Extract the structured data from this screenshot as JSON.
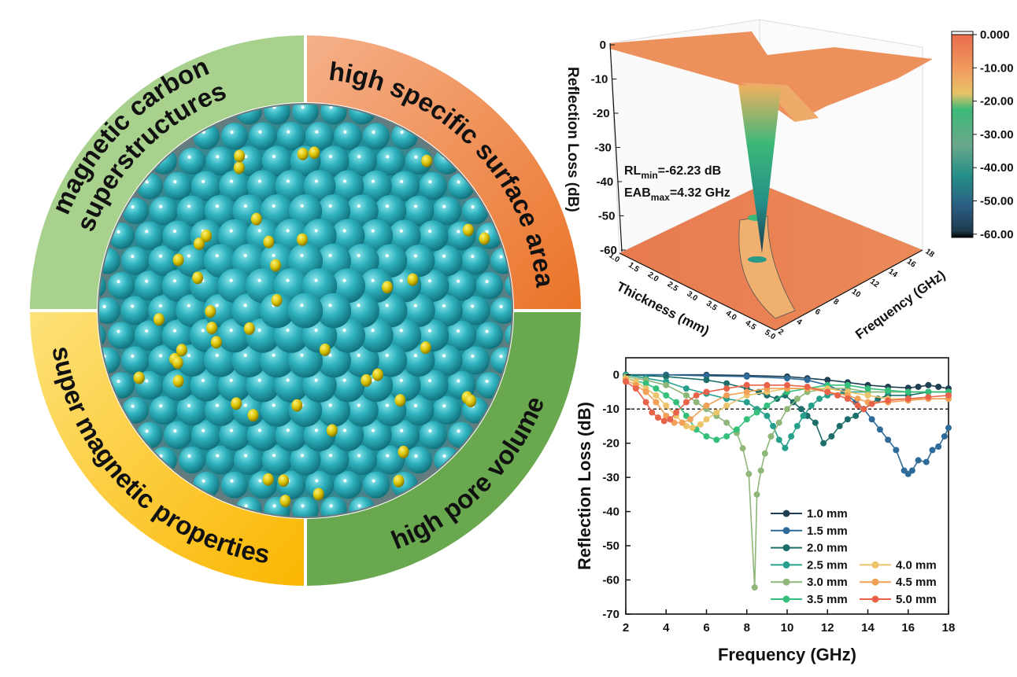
{
  "diagram": {
    "quadrants": [
      {
        "id": "tl",
        "lines": [
          "magnetic carbon",
          "superstructures"
        ],
        "color": "#a9d18e"
      },
      {
        "id": "tr",
        "lines": [
          "high specific surface area"
        ],
        "color": "#ee8a45"
      },
      {
        "id": "br",
        "lines": [
          "high pore volume"
        ],
        "color": "#6aa84f"
      },
      {
        "id": "bl",
        "lines": [
          "super magnetic properties"
        ],
        "color": "#fdc530"
      }
    ],
    "sphere_color": "#2fb3bf",
    "particle_color": "#d7c000"
  },
  "plot3d": {
    "z_label": "Reflection Loss (dB)",
    "x_label": "Thickness (mm)",
    "y_label": "Frequency (GHz)",
    "z_ticks": [
      "0",
      "-10",
      "-20",
      "-30",
      "-40",
      "-50",
      "-60"
    ],
    "thickness_ticks": [
      "1.0",
      "1.5",
      "2.0",
      "2.5",
      "3.0",
      "3.5",
      "4.0",
      "4.5",
      "5.0"
    ],
    "frequency_ticks": [
      "2",
      "4",
      "6",
      "8",
      "10",
      "12",
      "14",
      "16",
      "18"
    ],
    "colorbar_ticks": [
      "0.000",
      "-10.00",
      "-20.00",
      "-30.00",
      "-40.00",
      "-50.00",
      "-60.00"
    ],
    "annotation": {
      "rl_main": "RL",
      "rl_sub": "min",
      "rl_value": "=-62.23 dB",
      "eab_main": "EAB",
      "eab_sub": "max",
      "eab_value": "=4.32 GHz"
    }
  },
  "chart_data": {
    "type": "line",
    "title": "",
    "xlabel": "Frequency (GHz)",
    "ylabel": "Reflection Loss (dB)",
    "xlim": [
      2,
      18
    ],
    "ylim": [
      -70,
      5
    ],
    "x_ticks": [
      "2",
      "4",
      "6",
      "8",
      "10",
      "12",
      "14",
      "16",
      "18"
    ],
    "y_ticks": [
      "0",
      "-10",
      "-20",
      "-30",
      "-40",
      "-50",
      "-60",
      "-70"
    ],
    "reference_line": -10,
    "legend_position": "bottom-right",
    "series": [
      {
        "name": "1.0 mm",
        "color": "#213f52",
        "x": [
          2,
          4,
          6,
          8,
          10,
          11,
          12,
          13,
          14,
          15,
          16,
          16.5,
          17,
          17.5,
          18
        ],
        "y": [
          0,
          0,
          0,
          -0.2,
          -0.5,
          -1,
          -1.5,
          -2.2,
          -3,
          -3.5,
          -3.8,
          -3.5,
          -3,
          -3.5,
          -4
        ]
      },
      {
        "name": "1.5 mm",
        "color": "#2f6b98",
        "x": [
          2,
          4,
          6,
          8,
          10,
          11,
          12,
          12.8,
          13.4,
          13.8,
          14.2,
          14.6,
          15,
          15.4,
          15.8,
          16,
          16.2,
          16.5,
          16.9,
          17.2,
          17.5,
          17.8,
          18
        ],
        "y": [
          0,
          0,
          -0.3,
          -0.5,
          -1,
          -1.5,
          -3,
          -5,
          -8,
          -10,
          -13,
          -16,
          -19,
          -22,
          -28,
          -29,
          -28,
          -25,
          -25.5,
          -22,
          -21,
          -18,
          -15.5
        ]
      },
      {
        "name": "2.0 mm",
        "color": "#1d6e6b",
        "x": [
          2,
          4,
          6,
          7,
          8,
          8.6,
          9,
          9.5,
          9.9,
          10.3,
          10.7,
          11,
          11.4,
          11.8,
          12.2,
          12.6,
          13,
          13.4,
          13.8,
          14.5,
          15,
          16,
          17,
          18
        ],
        "y": [
          0,
          -0.5,
          -1.5,
          -2.5,
          -4,
          -5,
          -6,
          -7,
          -6,
          -8,
          -10,
          -12,
          -14,
          -20,
          -18,
          -15,
          -13,
          -12,
          -10,
          -7,
          -6,
          -6,
          -5,
          -5
        ]
      },
      {
        "name": "2.5 mm",
        "color": "#26a08d",
        "x": [
          2,
          3,
          4,
          5,
          6,
          7,
          8,
          8.5,
          9,
          9.3,
          9.6,
          9.9,
          10.2,
          10.5,
          10.8,
          11.2,
          11.6,
          12,
          13,
          14,
          15,
          16,
          17,
          18
        ],
        "y": [
          0,
          -1,
          -2,
          -4,
          -5.5,
          -7,
          -8,
          -10,
          -12,
          -15,
          -19,
          -21.4,
          -18,
          -15,
          -12,
          -9,
          -7,
          -6,
          -5,
          -5,
          -5,
          -5,
          -5,
          -5
        ]
      },
      {
        "name": "3.0 mm",
        "color": "#8fb77a",
        "x": [
          2,
          3,
          4,
          5,
          5.5,
          6,
          6.5,
          7,
          7.5,
          7.8,
          8.1,
          8.39,
          8.5,
          8.7,
          8.9,
          9.2,
          9.6,
          10,
          10.5,
          11,
          12,
          13,
          14,
          16,
          18
        ],
        "y": [
          -0.5,
          -1.5,
          -3,
          -6,
          -8,
          -10,
          -12,
          -14,
          -17,
          -21.5,
          -29,
          -62.2,
          -35,
          -28,
          -23,
          -18,
          -14,
          -10,
          -7,
          -5,
          -4,
          -4,
          -5,
          -5,
          -5
        ]
      },
      {
        "name": "3.5 mm",
        "color": "#34c07b",
        "x": [
          2,
          3,
          3.5,
          4,
          4.5,
          5,
          5.5,
          6,
          6.5,
          7,
          7.5,
          8,
          8.5,
          9,
          10,
          11,
          12,
          13,
          14,
          15,
          16,
          17,
          18
        ],
        "y": [
          -1,
          -2.5,
          -4,
          -6,
          -8,
          -12,
          -16,
          -18,
          -19,
          -18,
          -16,
          -13,
          -11,
          -9,
          -5,
          -4,
          -3,
          -3,
          -4,
          -4.5,
          -5,
          -5,
          -5
        ]
      },
      {
        "name": "4.0 mm",
        "color": "#ebc46b",
        "x": [
          2,
          2.5,
          3,
          3.5,
          4,
          4.5,
          5,
          5.3,
          5.7,
          6,
          6.5,
          7,
          8,
          9,
          10,
          11,
          12,
          13,
          14,
          15,
          16,
          17,
          18
        ],
        "y": [
          -1,
          -2,
          -4,
          -6,
          -9,
          -12,
          -15,
          -15.5,
          -14.5,
          -13,
          -11,
          -9,
          -6,
          -5,
          -4,
          -4,
          -4,
          -5,
          -6,
          -7,
          -7,
          -7,
          -7
        ]
      },
      {
        "name": "4.5 mm",
        "color": "#f2a055",
        "x": [
          2,
          2.5,
          3,
          3.5,
          4,
          4.4,
          4.8,
          5.2,
          6,
          7,
          8,
          9,
          10,
          11,
          12,
          13,
          13.5,
          14,
          15,
          16,
          17,
          18
        ],
        "y": [
          -1.5,
          -3,
          -5,
          -8,
          -12,
          -14,
          -14,
          -13,
          -9,
          -6,
          -5,
          -4,
          -4,
          -4,
          -5,
          -6,
          -7,
          -8,
          -8,
          -7.5,
          -7,
          -7
        ]
      },
      {
        "name": "5.0 mm",
        "color": "#e8634a",
        "x": [
          2,
          2.5,
          3,
          3.3,
          3.6,
          3.9,
          4.2,
          4.5,
          5,
          5.5,
          6,
          7,
          8,
          9,
          10,
          11,
          12,
          12.5,
          13,
          13.5,
          13.8,
          14.2,
          15,
          16,
          17,
          18
        ],
        "y": [
          -2,
          -4,
          -8,
          -11,
          -12.5,
          -13.5,
          -13,
          -11,
          -8,
          -6,
          -5,
          -4,
          -3,
          -3,
          -3,
          -3.5,
          -5,
          -6,
          -7,
          -9,
          -10,
          -8.5,
          -7.5,
          -7,
          -6.5,
          -6
        ]
      }
    ]
  }
}
